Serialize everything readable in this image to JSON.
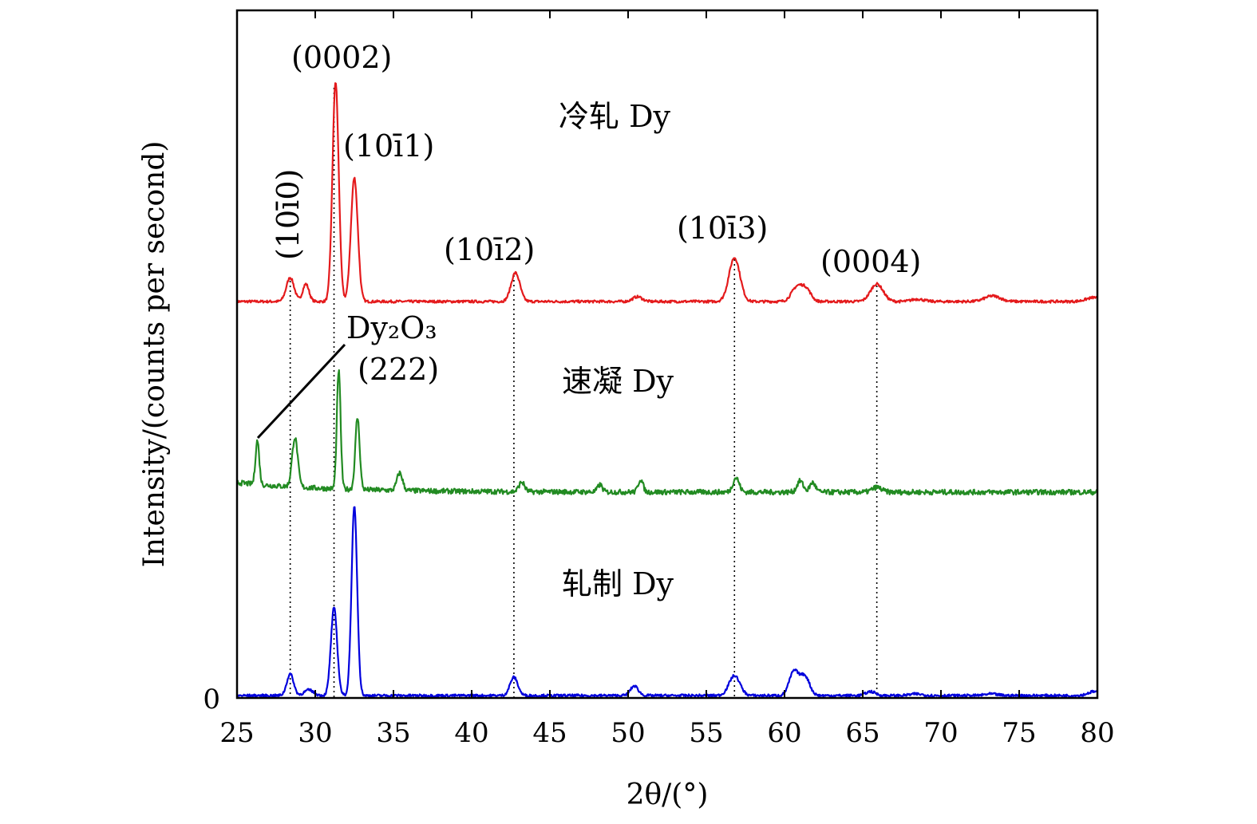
{
  "chart_data": {
    "type": "line",
    "xlabel": "2θ/(°)",
    "ylabel": "Intensity/(counts per second)",
    "xlim": [
      25,
      80
    ],
    "x_ticks": [
      "25",
      "30",
      "35",
      "40",
      "45",
      "50",
      "55",
      "60",
      "65",
      "70",
      "75",
      "80"
    ],
    "y_ticks": [
      "0"
    ],
    "grid": false,
    "series": [
      {
        "name": "冷轧 Dy",
        "color": "#e41a1c",
        "baseline": 100,
        "peaks": [
          {
            "x": 28.4,
            "h": 30,
            "w": 0.25
          },
          {
            "x": 29.4,
            "h": 22,
            "w": 0.2
          },
          {
            "x": 31.3,
            "h": 275,
            "w": 0.2
          },
          {
            "x": 32.5,
            "h": 155,
            "w": 0.22
          },
          {
            "x": 42.8,
            "h": 36,
            "w": 0.28
          },
          {
            "x": 50.6,
            "h": 6,
            "w": 0.3
          },
          {
            "x": 56.8,
            "h": 55,
            "w": 0.35
          },
          {
            "x": 60.8,
            "h": 18,
            "w": 0.35
          },
          {
            "x": 61.4,
            "h": 14,
            "w": 0.3
          },
          {
            "x": 65.9,
            "h": 22,
            "w": 0.4
          },
          {
            "x": 68.5,
            "h": 3,
            "w": 0.4
          },
          {
            "x": 73.3,
            "h": 7,
            "w": 0.5
          },
          {
            "x": 79.8,
            "h": 5,
            "w": 0.5
          }
        ]
      },
      {
        "name": "速凝 Dy",
        "color": "#228b22",
        "baseline": 55,
        "peaks": [
          {
            "x": 26.3,
            "h": 55,
            "w": 0.12
          },
          {
            "x": 28.7,
            "h": 62,
            "w": 0.18
          },
          {
            "x": 31.5,
            "h": 148,
            "w": 0.12
          },
          {
            "x": 32.7,
            "h": 90,
            "w": 0.14
          },
          {
            "x": 35.4,
            "h": 22,
            "w": 0.18
          },
          {
            "x": 43.2,
            "h": 12,
            "w": 0.18
          },
          {
            "x": 48.2,
            "h": 9,
            "w": 0.15
          },
          {
            "x": 50.8,
            "h": 16,
            "w": 0.15
          },
          {
            "x": 56.9,
            "h": 18,
            "w": 0.2
          },
          {
            "x": 61.0,
            "h": 14,
            "w": 0.2
          },
          {
            "x": 61.8,
            "h": 12,
            "w": 0.18
          },
          {
            "x": 65.9,
            "h": 6,
            "w": 0.3
          }
        ]
      },
      {
        "name": "轧制 Dy",
        "color": "#0000dd",
        "baseline": 5,
        "peaks": [
          {
            "x": 28.4,
            "h": 27,
            "w": 0.22
          },
          {
            "x": 29.6,
            "h": 7,
            "w": 0.3
          },
          {
            "x": 31.2,
            "h": 110,
            "w": 0.2
          },
          {
            "x": 32.5,
            "h": 237,
            "w": 0.18
          },
          {
            "x": 42.7,
            "h": 23,
            "w": 0.25
          },
          {
            "x": 50.4,
            "h": 12,
            "w": 0.25
          },
          {
            "x": 56.8,
            "h": 25,
            "w": 0.35
          },
          {
            "x": 60.6,
            "h": 30,
            "w": 0.3
          },
          {
            "x": 61.3,
            "h": 24,
            "w": 0.3
          },
          {
            "x": 65.5,
            "h": 5,
            "w": 0.3
          },
          {
            "x": 68.4,
            "h": 2,
            "w": 0.4
          },
          {
            "x": 73.2,
            "h": 2,
            "w": 0.4
          },
          {
            "x": 79.8,
            "h": 5,
            "w": 0.4
          }
        ]
      }
    ],
    "reference_lines_x": [
      28.4,
      31.2,
      42.7,
      56.8,
      65.9
    ],
    "annotations": [
      {
        "text": "(0002)",
        "x": 31.3
      },
      {
        "text": "(10ī1)",
        "x": 32.5
      },
      {
        "text": "(10ī0)",
        "x": 28.4,
        "rotated": true
      },
      {
        "text": "(10ī2)",
        "x": 42.8
      },
      {
        "text": "(10ī3)",
        "x": 56.8
      },
      {
        "text": "(0004)",
        "x": 65.9
      },
      {
        "text": "Dy₂O₃",
        "x": 31.5
      },
      {
        "text": "(222)",
        "x": 31.5
      }
    ]
  }
}
